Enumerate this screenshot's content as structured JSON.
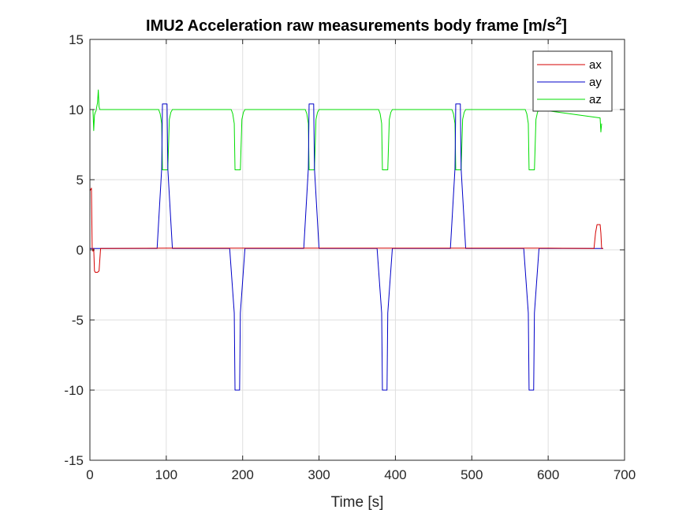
{
  "chart_data": {
    "type": "line",
    "title": {
      "main": "IMU2 Acceleration raw measurements body frame [m/s",
      "sup": "2",
      "end": "]"
    },
    "xlabel": "Time [s]",
    "ylabel": "",
    "xlim": [
      0,
      700
    ],
    "ylim": [
      -15,
      15
    ],
    "xticks": [
      0,
      100,
      200,
      300,
      400,
      500,
      600,
      700
    ],
    "yticks": [
      -15,
      -10,
      -5,
      0,
      5,
      10,
      15
    ],
    "grid": true,
    "legend_position": "top-right",
    "series": [
      {
        "name": "ax",
        "color": "#d40000",
        "x": [
          0,
          2,
          3,
          4,
          5,
          6,
          7,
          10,
          12,
          14,
          16,
          100,
          200,
          300,
          400,
          500,
          600,
          660,
          662,
          664,
          666,
          668,
          669,
          670,
          672
        ],
        "y": [
          4.2,
          4.4,
          0.1,
          -0.1,
          0.1,
          -1.5,
          -1.6,
          -1.6,
          -1.5,
          0.1,
          0.1,
          0.12,
          0.12,
          0.12,
          0.12,
          0.12,
          0.12,
          0.1,
          1.2,
          1.8,
          1.8,
          1.8,
          1.2,
          0.1,
          0.1
        ]
      },
      {
        "name": "ay",
        "color": "#0000c8",
        "x": [
          0,
          88,
          94,
          95,
          96,
          101,
          102,
          108,
          183,
          189,
          190,
          191,
          196,
          197,
          203,
          280,
          286,
          287,
          288,
          293,
          294,
          300,
          376,
          382,
          383,
          384,
          389,
          390,
          396,
          472,
          478,
          479,
          480,
          485,
          486,
          492,
          568,
          574,
          575,
          576,
          581,
          582,
          588,
          672
        ],
        "y": [
          0.1,
          0.1,
          5.8,
          10.4,
          10.4,
          10.4,
          5.8,
          0.1,
          0.1,
          -4.5,
          -10,
          -10,
          -10,
          -4.5,
          0.1,
          0.1,
          5.8,
          10.4,
          10.4,
          10.4,
          5.8,
          0.1,
          0.1,
          -4.5,
          -10,
          -10,
          -10,
          -4.5,
          0.1,
          0.1,
          5.8,
          10.4,
          10.4,
          10.4,
          5.8,
          0.1,
          0.1,
          -4.5,
          -10,
          -10,
          -10,
          -4.5,
          0.1,
          0.1
        ]
      },
      {
        "name": "az",
        "color": "#00dd00",
        "x": [
          0,
          4,
          5,
          6,
          7,
          8,
          10,
          11,
          12,
          13,
          14,
          90,
          92,
          94,
          95,
          96,
          101,
          102,
          104,
          106,
          108,
          185,
          187,
          189,
          190,
          191,
          196,
          197,
          199,
          201,
          203,
          282,
          284,
          286,
          287,
          288,
          293,
          294,
          296,
          298,
          300,
          378,
          380,
          382,
          383,
          384,
          389,
          390,
          392,
          394,
          396,
          474,
          476,
          478,
          479,
          480,
          485,
          486,
          488,
          490,
          492,
          570,
          572,
          574,
          575,
          576,
          581,
          582,
          584,
          586,
          588,
          668,
          669,
          670
        ],
        "y": [
          10,
          10,
          8.5,
          9.6,
          9.8,
          9.9,
          10.5,
          11.4,
          10.2,
          10,
          10,
          10,
          9.7,
          9,
          5.7,
          5.7,
          5.7,
          5.7,
          9.3,
          9.8,
          10,
          10,
          9.7,
          9,
          5.7,
          5.7,
          5.7,
          5.7,
          9.3,
          9.8,
          10,
          10,
          9.7,
          9,
          5.7,
          5.7,
          5.7,
          5.7,
          9.3,
          9.8,
          10,
          10,
          9.7,
          9,
          5.7,
          5.7,
          5.7,
          5.7,
          9.3,
          9.8,
          10,
          10,
          9.7,
          9,
          5.7,
          5.7,
          5.7,
          5.7,
          9.3,
          9.8,
          10,
          10,
          9.7,
          9,
          5.7,
          5.7,
          5.7,
          5.7,
          9.3,
          9.8,
          10,
          9.4,
          8.4,
          9.0
        ]
      }
    ]
  }
}
